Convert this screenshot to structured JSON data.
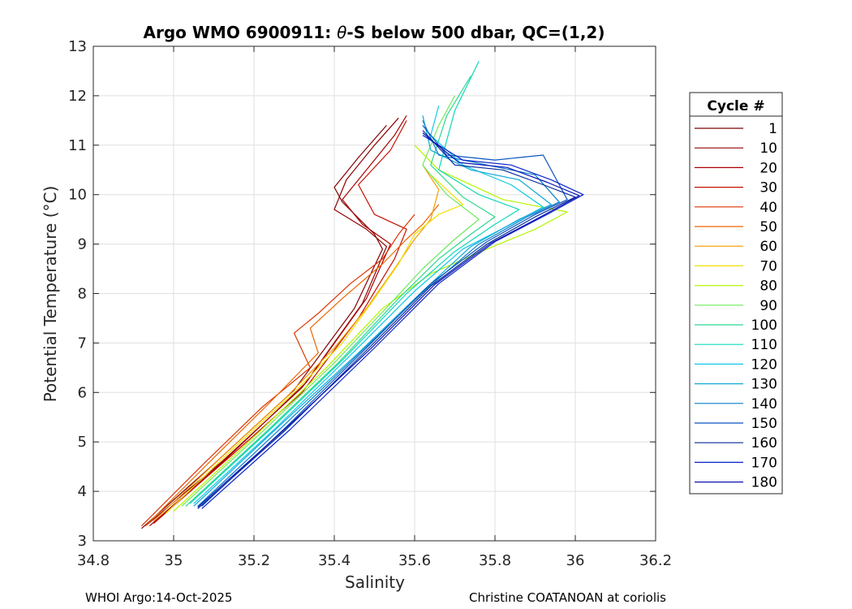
{
  "chart_data": {
    "type": "line",
    "title_prefix": "Argo WMO 6900911: ",
    "title_symbol": "θ",
    "title_suffix": "-S below 500 dbar,  QC=(1,2)",
    "xlabel": "Salinity",
    "ylabel": "Potential Temperature (°C)",
    "xlim": [
      34.8,
      36.2
    ],
    "ylim": [
      3,
      13
    ],
    "xticks": [
      34.8,
      35,
      35.2,
      35.4,
      35.6,
      35.8,
      36,
      36.2
    ],
    "xtick_labels": [
      "34.8",
      "35",
      "35.2",
      "35.4",
      "35.6",
      "35.8",
      "36",
      "36.2"
    ],
    "yticks": [
      3,
      4,
      5,
      6,
      7,
      8,
      9,
      10,
      11,
      12,
      13
    ],
    "ytick_labels": [
      "3",
      "4",
      "5",
      "6",
      "7",
      "8",
      "9",
      "10",
      "11",
      "12",
      "13"
    ],
    "grid": true,
    "legend_title": "Cycle #",
    "legend_placement": "outside-right",
    "series": [
      {
        "name": "1",
        "color": "#800000",
        "points": [
          [
            34.92,
            3.25
          ],
          [
            35.1,
            4.55
          ],
          [
            35.3,
            6.05
          ],
          [
            35.45,
            7.7
          ],
          [
            35.52,
            8.9
          ],
          [
            35.5,
            9.2
          ],
          [
            35.42,
            9.85
          ],
          [
            35.4,
            10.15
          ],
          [
            35.46,
            10.75
          ],
          [
            35.53,
            11.4
          ]
        ]
      },
      {
        "name": "10",
        "color": "#900000",
        "points": [
          [
            34.93,
            3.3
          ],
          [
            35.12,
            4.6
          ],
          [
            35.32,
            6.1
          ],
          [
            35.47,
            7.8
          ],
          [
            35.53,
            8.95
          ],
          [
            35.48,
            9.3
          ],
          [
            35.4,
            9.7
          ],
          [
            35.43,
            10.3
          ],
          [
            35.5,
            11.0
          ],
          [
            35.56,
            11.55
          ]
        ]
      },
      {
        "name": "20",
        "color": "#a80000",
        "points": [
          [
            34.94,
            3.3
          ],
          [
            35.13,
            4.65
          ],
          [
            35.33,
            6.2
          ],
          [
            35.48,
            7.9
          ],
          [
            35.54,
            9.0
          ],
          [
            35.47,
            9.4
          ],
          [
            35.42,
            9.9
          ],
          [
            35.48,
            10.5
          ],
          [
            35.55,
            11.2
          ],
          [
            35.58,
            11.6
          ]
        ]
      },
      {
        "name": "30",
        "color": "#c41000",
        "points": [
          [
            34.95,
            3.35
          ],
          [
            35.14,
            4.7
          ],
          [
            35.32,
            6.0
          ],
          [
            35.46,
            7.5
          ],
          [
            35.55,
            8.7
          ],
          [
            35.58,
            9.3
          ],
          [
            35.5,
            9.6
          ],
          [
            35.46,
            10.2
          ],
          [
            35.54,
            10.9
          ],
          [
            35.58,
            11.5
          ]
        ]
      },
      {
        "name": "40",
        "color": "#dd3300",
        "points": [
          [
            34.92,
            3.3
          ],
          [
            35.08,
            4.6
          ],
          [
            35.22,
            5.7
          ],
          [
            35.34,
            6.5
          ],
          [
            35.3,
            7.2
          ],
          [
            35.36,
            7.6
          ],
          [
            35.44,
            8.2
          ],
          [
            35.52,
            8.7
          ],
          [
            35.56,
            9.2
          ],
          [
            35.6,
            9.6
          ]
        ]
      },
      {
        "name": "50",
        "color": "#ee6600",
        "points": [
          [
            34.93,
            3.3
          ],
          [
            35.09,
            4.6
          ],
          [
            35.24,
            5.8
          ],
          [
            35.36,
            6.8
          ],
          [
            35.34,
            7.3
          ],
          [
            35.42,
            7.9
          ],
          [
            35.52,
            8.6
          ],
          [
            35.58,
            9.1
          ],
          [
            35.62,
            9.4
          ],
          [
            35.66,
            9.8
          ]
        ]
      },
      {
        "name": "60",
        "color": "#f59a00",
        "points": [
          [
            34.95,
            3.4
          ],
          [
            35.12,
            4.7
          ],
          [
            35.28,
            5.9
          ],
          [
            35.4,
            6.9
          ],
          [
            35.48,
            7.7
          ],
          [
            35.55,
            8.5
          ],
          [
            35.6,
            9.1
          ],
          [
            35.64,
            9.5
          ],
          [
            35.66,
            10.1
          ],
          [
            35.62,
            10.6
          ]
        ]
      },
      {
        "name": "70",
        "color": "#f0e000",
        "points": [
          [
            34.98,
            3.55
          ],
          [
            35.14,
            4.8
          ],
          [
            35.3,
            6.0
          ],
          [
            35.42,
            7.0
          ],
          [
            35.5,
            7.9
          ],
          [
            35.56,
            8.6
          ],
          [
            35.6,
            9.2
          ],
          [
            35.66,
            9.6
          ],
          [
            35.72,
            9.8
          ],
          [
            35.64,
            10.4
          ]
        ]
      },
      {
        "name": "80",
        "color": "#b5f500",
        "points": [
          [
            35.0,
            3.6
          ],
          [
            35.2,
            5.1
          ],
          [
            35.38,
            6.5
          ],
          [
            35.52,
            7.7
          ],
          [
            35.64,
            8.4
          ],
          [
            35.78,
            8.9
          ],
          [
            35.9,
            9.3
          ],
          [
            35.98,
            9.65
          ],
          [
            35.82,
            9.9
          ],
          [
            35.66,
            10.5
          ],
          [
            35.6,
            11.0
          ]
        ]
      },
      {
        "name": "90",
        "color": "#70e860",
        "points": [
          [
            35.02,
            3.7
          ],
          [
            35.22,
            5.2
          ],
          [
            35.4,
            6.6
          ],
          [
            35.54,
            7.8
          ],
          [
            35.62,
            8.5
          ],
          [
            35.7,
            9.1
          ],
          [
            35.76,
            9.5
          ],
          [
            35.68,
            10.0
          ],
          [
            35.62,
            10.6
          ],
          [
            35.66,
            11.4
          ],
          [
            35.7,
            12.0
          ]
        ]
      },
      {
        "name": "100",
        "color": "#2ed890",
        "points": [
          [
            35.03,
            3.7
          ],
          [
            35.23,
            5.2
          ],
          [
            35.41,
            6.6
          ],
          [
            35.56,
            7.9
          ],
          [
            35.66,
            8.7
          ],
          [
            35.74,
            9.2
          ],
          [
            35.8,
            9.55
          ],
          [
            35.72,
            9.95
          ],
          [
            35.64,
            10.6
          ],
          [
            35.68,
            11.6
          ],
          [
            35.74,
            12.4
          ]
        ]
      },
      {
        "name": "110",
        "color": "#10d8b8",
        "points": [
          [
            35.04,
            3.75
          ],
          [
            35.24,
            5.25
          ],
          [
            35.42,
            6.65
          ],
          [
            35.58,
            8.0
          ],
          [
            35.7,
            8.85
          ],
          [
            35.8,
            9.4
          ],
          [
            35.86,
            9.7
          ],
          [
            35.76,
            10.0
          ],
          [
            35.66,
            10.5
          ],
          [
            35.7,
            11.7
          ],
          [
            35.76,
            12.7
          ]
        ]
      },
      {
        "name": "120",
        "color": "#10c8e8",
        "points": [
          [
            35.05,
            3.75
          ],
          [
            35.25,
            5.25
          ],
          [
            35.44,
            6.75
          ],
          [
            35.6,
            8.05
          ],
          [
            35.72,
            8.9
          ],
          [
            35.84,
            9.4
          ],
          [
            35.92,
            9.75
          ],
          [
            35.84,
            10.2
          ],
          [
            35.72,
            10.6
          ],
          [
            35.64,
            11.2
          ],
          [
            35.66,
            11.8
          ]
        ]
      },
      {
        "name": "130",
        "color": "#10a8d8",
        "points": [
          [
            35.05,
            3.7
          ],
          [
            35.26,
            5.3
          ],
          [
            35.46,
            6.8
          ],
          [
            35.62,
            8.05
          ],
          [
            35.74,
            8.95
          ],
          [
            35.86,
            9.5
          ],
          [
            35.94,
            9.8
          ],
          [
            35.86,
            10.3
          ],
          [
            35.74,
            10.5
          ],
          [
            35.64,
            10.9
          ],
          [
            35.62,
            11.6
          ]
        ]
      },
      {
        "name": "140",
        "color": "#0a7ecc",
        "points": [
          [
            35.06,
            3.7
          ],
          [
            35.27,
            5.3
          ],
          [
            35.47,
            6.85
          ],
          [
            35.63,
            8.1
          ],
          [
            35.76,
            9.0
          ],
          [
            35.88,
            9.55
          ],
          [
            35.96,
            9.85
          ],
          [
            35.9,
            10.4
          ],
          [
            35.78,
            10.6
          ],
          [
            35.66,
            10.8
          ],
          [
            35.62,
            11.5
          ]
        ]
      },
      {
        "name": "150",
        "color": "#0a55c0",
        "points": [
          [
            35.07,
            3.7
          ],
          [
            35.28,
            5.3
          ],
          [
            35.48,
            6.9
          ],
          [
            35.64,
            8.2
          ],
          [
            35.78,
            9.05
          ],
          [
            35.9,
            9.6
          ],
          [
            35.98,
            9.9
          ],
          [
            35.92,
            10.8
          ],
          [
            35.8,
            10.7
          ],
          [
            35.68,
            10.8
          ],
          [
            35.62,
            11.4
          ]
        ]
      },
      {
        "name": "160",
        "color": "#0a2a9a",
        "points": [
          [
            35.06,
            3.65
          ],
          [
            35.28,
            5.25
          ],
          [
            35.48,
            6.85
          ],
          [
            35.64,
            8.15
          ],
          [
            35.78,
            9.0
          ],
          [
            35.9,
            9.55
          ],
          [
            36.0,
            9.95
          ],
          [
            35.92,
            10.2
          ],
          [
            35.82,
            10.5
          ],
          [
            35.7,
            10.6
          ],
          [
            35.62,
            11.3
          ]
        ]
      },
      {
        "name": "170",
        "color": "#0a24c8",
        "points": [
          [
            35.07,
            3.65
          ],
          [
            35.29,
            5.25
          ],
          [
            35.5,
            6.9
          ],
          [
            35.66,
            8.2
          ],
          [
            35.8,
            9.05
          ],
          [
            35.93,
            9.6
          ],
          [
            36.02,
            10.0
          ],
          [
            35.94,
            10.3
          ],
          [
            35.84,
            10.6
          ],
          [
            35.72,
            10.7
          ],
          [
            35.62,
            11.2
          ]
        ]
      },
      {
        "name": "180",
        "color": "#0a14b4",
        "points": [
          [
            35.06,
            3.68
          ],
          [
            35.28,
            5.28
          ],
          [
            35.49,
            6.88
          ],
          [
            35.65,
            8.18
          ],
          [
            35.79,
            9.02
          ],
          [
            35.92,
            9.58
          ],
          [
            36.01,
            9.98
          ],
          [
            35.93,
            10.25
          ],
          [
            35.83,
            10.55
          ],
          [
            35.71,
            10.65
          ],
          [
            35.62,
            11.25
          ]
        ]
      }
    ]
  },
  "footer": {
    "left": "WHOI Argo:14-Oct-2025",
    "right": "Christine COATANOAN at coriolis"
  }
}
